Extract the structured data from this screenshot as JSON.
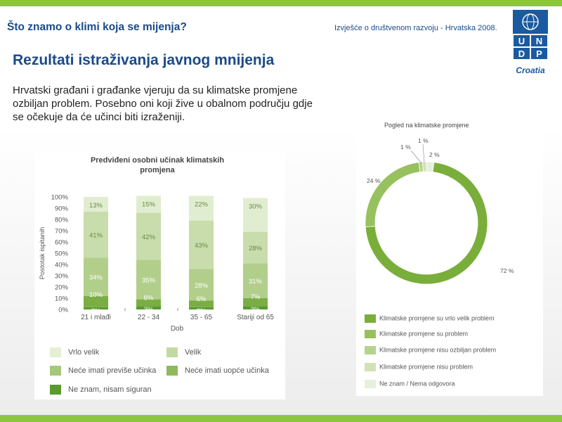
{
  "slide": {
    "title": "Što znamo o klimi koja se mijenja?",
    "report": "Izvješće o društvenom razvoju - Hrvatska 2008.",
    "subtitle": "Rezultati istraživanja javnog mnijenja",
    "body": "Hrvatski građani i građanke vjeruju da su klimatske promjene ozbiljan problem. Posebno oni koji žive u obalnom području gdje se očekuje da će učinci biti izraženiji."
  },
  "logo": {
    "letters": [
      "U",
      "N",
      "D",
      "P"
    ],
    "text": "Croatia"
  },
  "colors": {
    "bar_panel_legend": [
      "#e4efd3",
      "#c3d9a2",
      "#a5c87c",
      "#8fba5c",
      "#5a9a30"
    ],
    "donut_legend": [
      "#7aae3a",
      "#96c15e",
      "#b4d38c",
      "#d0e3b4",
      "#e6efdb"
    ]
  },
  "chart_data": [
    {
      "type": "bar",
      "title": "Predviđeni osobni učinak klimatskih promjena",
      "xlabel": "Dob",
      "ylabel": "Postotak ispitanih",
      "ylim": [
        0,
        100
      ],
      "yticks": [
        "0%",
        "10%",
        "20%",
        "30%",
        "40%",
        "50%",
        "60%",
        "70%",
        "80%",
        "90%",
        "100%"
      ],
      "categories": [
        "21 i mlađi",
        "22 - 34",
        "35 - 65",
        "Stariji od 65"
      ],
      "series": [
        {
          "name": "Ne znam, nisam siguran",
          "values": [
            2,
            3,
            2,
            3
          ],
          "labels": [
            "2%",
            "3%",
            "2%",
            "3%"
          ]
        },
        {
          "name": "Neće imati uopće učinka",
          "values": [
            10,
            6,
            6,
            7
          ],
          "labels": [
            "10%",
            "6%",
            "6%",
            "7%"
          ]
        },
        {
          "name": "Neće imati previše učinka",
          "values": [
            34,
            35,
            28,
            31
          ],
          "labels": [
            "34%",
            "35%",
            "28%",
            "31%"
          ]
        },
        {
          "name": "Velik",
          "values": [
            41,
            42,
            43,
            28
          ],
          "labels": [
            "41%",
            "42%",
            "43%",
            "28%"
          ]
        },
        {
          "name": "Vrlo velik",
          "values": [
            13,
            15,
            22,
            30
          ],
          "labels": [
            "13%",
            "15%",
            "22%",
            "30%"
          ]
        }
      ],
      "legend_order": [
        "Vrlo velik",
        "Velik",
        "Neće imati previše učinka",
        "Neće imati uopće učinka",
        "Ne znam, nisam siguran"
      ],
      "legend": "bottom",
      "grid": false
    },
    {
      "type": "pie",
      "title": "Pogled na klimatske promjene",
      "donut": true,
      "categories": [
        "Klimatske promjene su vrlo velik problem",
        "Klimatske promjene su problem",
        "Klimatske promjene nisu ozbiljan problem",
        "Klimatske promjene nisu problem",
        "Ne znam / Nema odgovora"
      ],
      "values": [
        72,
        24,
        1,
        1,
        2
      ],
      "labels": [
        "72 %",
        "24 %",
        "1 %",
        "1 %",
        "2 %"
      ],
      "legend": "bottom"
    }
  ]
}
